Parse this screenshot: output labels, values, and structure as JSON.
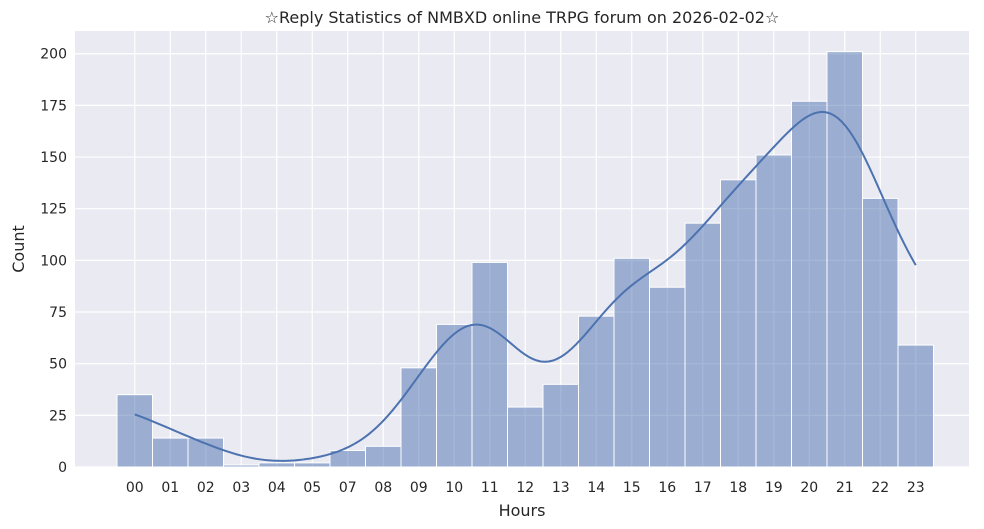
{
  "chart_data": {
    "type": "bar",
    "title": "☆Reply Statistics of NMBXD online TRPG forum on 2026-02-02☆",
    "xlabel": "Hours",
    "ylabel": "Count",
    "categories": [
      "00",
      "01",
      "02",
      "03",
      "04",
      "05",
      "07",
      "08",
      "09",
      "10",
      "11",
      "12",
      "13",
      "14",
      "15",
      "16",
      "17",
      "18",
      "19",
      "20",
      "21",
      "22",
      "23"
    ],
    "values": [
      35,
      14,
      14,
      1,
      2,
      2,
      8,
      10,
      48,
      69,
      99,
      29,
      40,
      73,
      101,
      87,
      118,
      139,
      151,
      177,
      201,
      130,
      59
    ],
    "ylim": [
      0,
      211
    ],
    "yticks": [
      0,
      25,
      50,
      75,
      100,
      125,
      150,
      175,
      200
    ],
    "grid": true,
    "kde_line": true,
    "colors": {
      "background": "#eaeaf2",
      "grid": "#ffffff",
      "bar_fill": "#4c72b0",
      "bar_fill_opacity": 0.5,
      "bar_edge": "#ffffff",
      "kde_line": "#4c72b0"
    }
  }
}
